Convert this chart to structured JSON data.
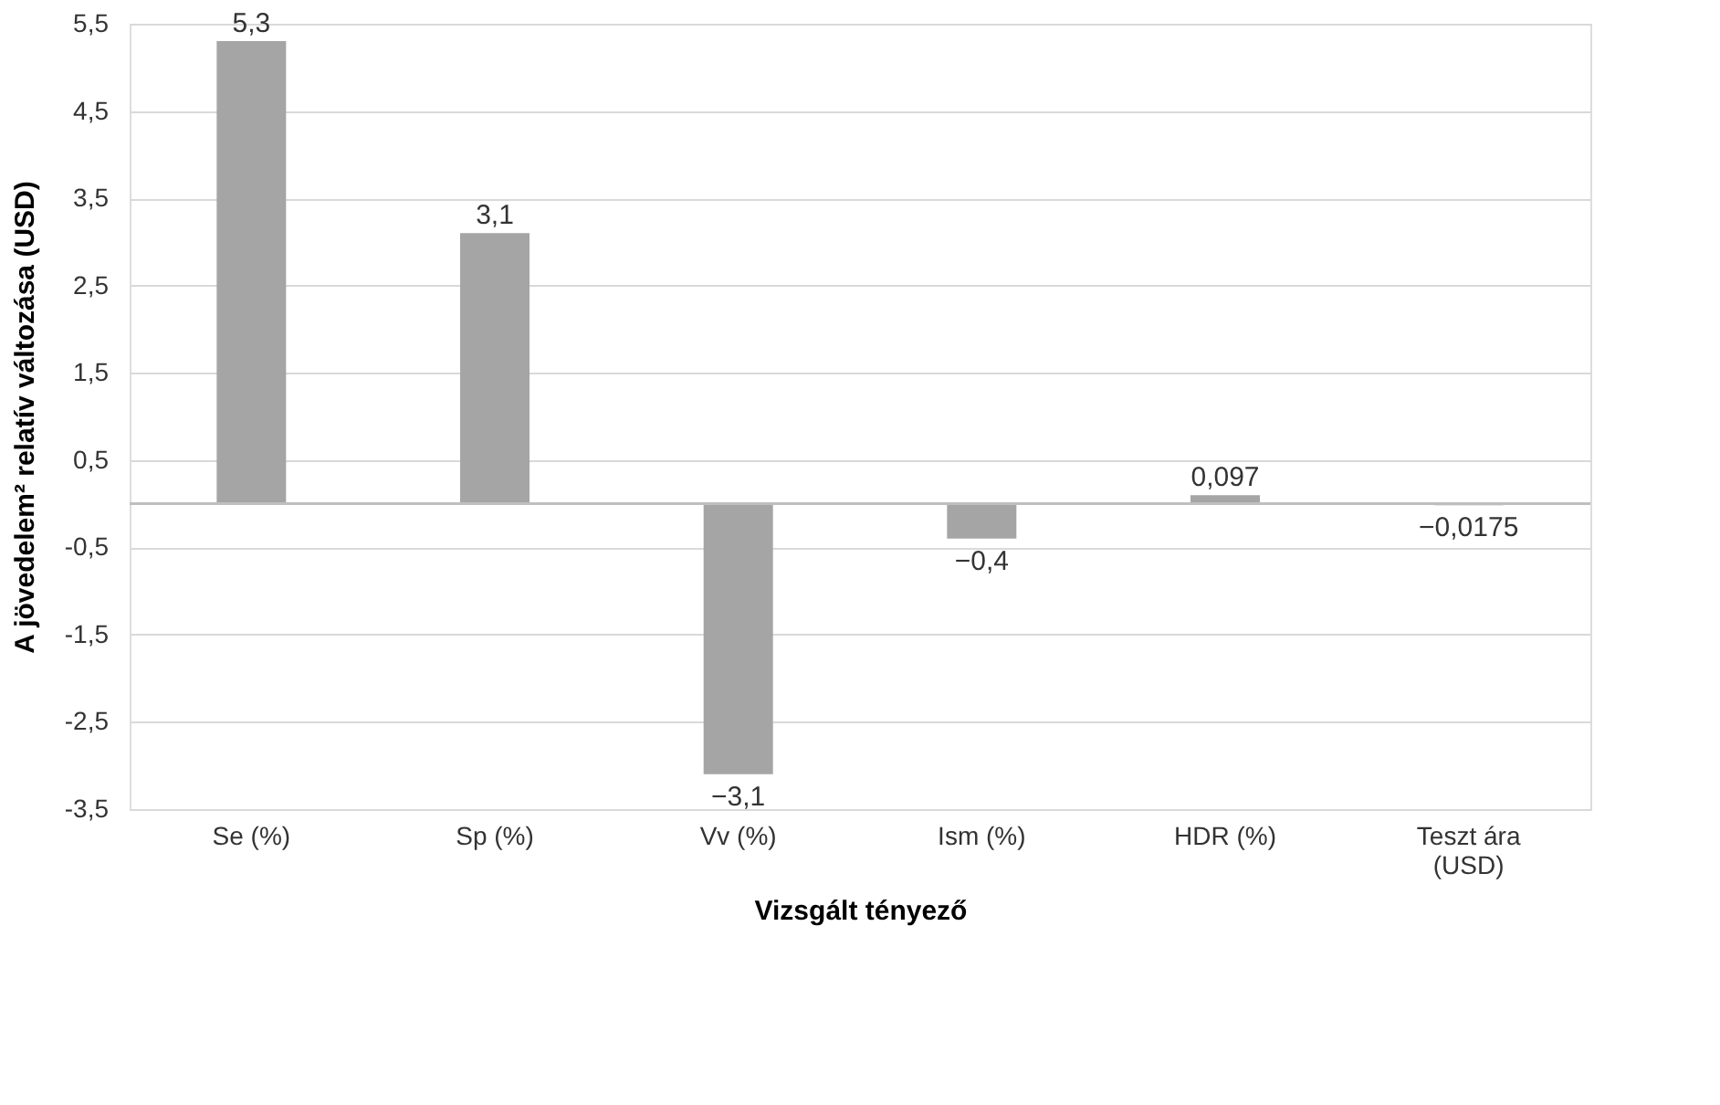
{
  "chart_data": {
    "type": "bar",
    "xlabel": "Vizsgált tényező",
    "ylabel": "A jövedelem² relatív változása (USD)",
    "categories": [
      "Se (%)",
      "Sp (%)",
      "Vv (%)",
      "Ism (%)",
      "HDR (%)",
      "Teszt ára (USD)"
    ],
    "values": [
      5.3,
      3.1,
      -3.1,
      -0.4,
      0.097,
      -0.0175
    ],
    "value_labels": [
      "5,3",
      "3,1",
      "−3,1",
      "−0,4",
      "0,097",
      "−0,0175"
    ],
    "color": "#a5a5a5",
    "ylim": [
      -3.5,
      5.5
    ],
    "yticks": [
      {
        "value": 5.5,
        "label": "5,5"
      },
      {
        "value": 4.5,
        "label": "4,5"
      },
      {
        "value": 3.5,
        "label": "3,5"
      },
      {
        "value": 2.5,
        "label": "2,5"
      },
      {
        "value": 1.5,
        "label": "1,5"
      },
      {
        "value": 0.5,
        "label": "0,5"
      },
      {
        "value": -0.5,
        "label": "-0,5"
      },
      {
        "value": -1.5,
        "label": "-1,5"
      },
      {
        "value": -2.5,
        "label": "-2,5"
      },
      {
        "value": -3.5,
        "label": "-3,5"
      }
    ],
    "grid": "y"
  }
}
